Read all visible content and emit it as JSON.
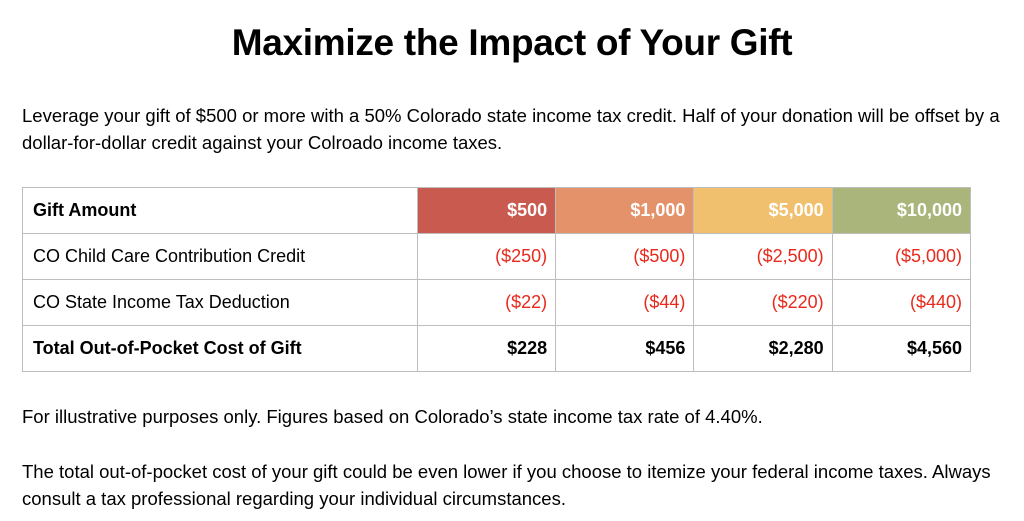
{
  "title": "Maximize the Impact of Your Gift",
  "intro": "Leverage your gift of $500 or more with a 50% Colorado state income tax credit. Half of your donation will be offset by a dollar-for-dollar credit against your Colroado income taxes.",
  "table": {
    "header": {
      "label": "Gift Amount",
      "amounts": [
        "$500",
        "$1,000",
        "$5,000",
        "$10,000"
      ],
      "colors": [
        "#c95a50",
        "#e4926a",
        "#f0c06f",
        "#a9b57a"
      ]
    },
    "rows": [
      {
        "label": "CO Child Care Contribution Credit",
        "values": [
          "($250)",
          "($500)",
          "($2,500)",
          "($5,000)"
        ]
      },
      {
        "label": "CO State Income Tax Deduction",
        "values": [
          "($22)",
          "($44)",
          "($220)",
          "($440)"
        ]
      }
    ],
    "total": {
      "label": "Total Out-of-Pocket Cost of Gift",
      "values": [
        "$228",
        "$456",
        "$2,280",
        "$4,560"
      ]
    },
    "negative_color": "#e8291c"
  },
  "note": "For illustrative purposes only. Figures based on Colorado’s state income tax rate of 4.40%.",
  "disclaimer": "The total out-of-pocket cost of your gift could be even lower if you choose to itemize your federal income taxes. Always consult a tax professional regarding your individual circumstances."
}
